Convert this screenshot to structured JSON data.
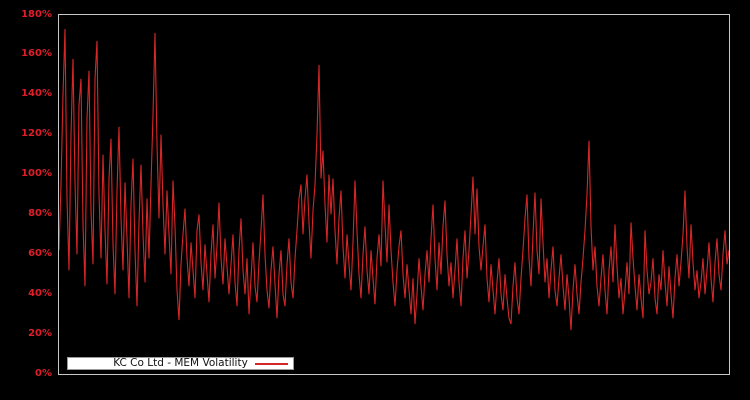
{
  "window": {
    "background_color": "#000000"
  },
  "chart_data": {
    "type": "line",
    "title": "",
    "xlabel": "",
    "ylabel": "",
    "ylim": [
      0,
      180
    ],
    "ytick_interval_pct": 20,
    "yticks": [
      "0%",
      "20%",
      "40%",
      "60%",
      "80%",
      "100%",
      "120%",
      "140%",
      "160%",
      "180%"
    ],
    "xticks": [],
    "grid": false,
    "plot_border_color": "#c8c8c8",
    "tick_label_color": "#de1f2a",
    "legend": {
      "position": "bottom-left",
      "label": "KC Co Ltd - MEM Volatility",
      "background": "#ffffff",
      "text_color": "#111111"
    },
    "series": [
      {
        "name": "KC Co Ltd - MEM Volatility",
        "color": "#d62728",
        "unit": "%",
        "values_pct": [
          62,
          95,
          140,
          173,
          88,
          52,
          120,
          158,
          96,
          60,
          135,
          148,
          75,
          44,
          128,
          152,
          82,
          55,
          148,
          167,
          90,
          58,
          110,
          72,
          45,
          98,
          118,
          65,
          40,
          92,
          124,
          78,
          52,
          96,
          68,
          38,
          85,
          108,
          62,
          34,
          76,
          105,
          70,
          46,
          88,
          58,
          95,
          130,
          171,
          115,
          78,
          120,
          85,
          60,
          92,
          70,
          50,
          97,
          74,
          42,
          27,
          55,
          70,
          83,
          58,
          44,
          66,
          52,
          38,
          72,
          80,
          56,
          42,
          65,
          50,
          36,
          60,
          75,
          48,
          64,
          86,
          58,
          45,
          68,
          54,
          40,
          55,
          70,
          46,
          34,
          62,
          78,
          52,
          40,
          58,
          30,
          48,
          66,
          44,
          36,
          56,
          72,
          90,
          60,
          42,
          33,
          52,
          64,
          45,
          28,
          50,
          62,
          40,
          34,
          55,
          68,
          46,
          38,
          58,
          72,
          88,
          95,
          70,
          88,
          100,
          76,
          58,
          82,
          95,
          120,
          155,
          98,
          112,
          85,
          66,
          100,
          80,
          98,
          72,
          55,
          78,
          92,
          64,
          48,
          70,
          55,
          42,
          66,
          97,
          72,
          50,
          38,
          60,
          74,
          52,
          40,
          62,
          48,
          35,
          58,
          70,
          54,
          97,
          75,
          56,
          85,
          62,
          46,
          34,
          52,
          64,
          72,
          50,
          38,
          55,
          42,
          30,
          48,
          25,
          40,
          58,
          44,
          32,
          50,
          62,
          46,
          68,
          85,
          58,
          42,
          66,
          50,
          74,
          87,
          60,
          44,
          56,
          38,
          52,
          68,
          46,
          34,
          58,
          72,
          48,
          62,
          80,
          99,
          70,
          93,
          64,
          52,
          64,
          75,
          48,
          36,
          55,
          42,
          30,
          46,
          58,
          40,
          32,
          50,
          38,
          28,
          25,
          44,
          56,
          38,
          30,
          48,
          62,
          78,
          90,
          58,
          44,
          70,
          91,
          62,
          50,
          88,
          66,
          46,
          58,
          38,
          52,
          64,
          42,
          34,
          48,
          60,
          44,
          32,
          50,
          38,
          22,
          42,
          55,
          40,
          30,
          46,
          58,
          72,
          90,
          117,
          74,
          52,
          64,
          44,
          34,
          48,
          60,
          42,
          30,
          52,
          64,
          46,
          75,
          54,
          38,
          48,
          30,
          42,
          56,
          40,
          76,
          58,
          44,
          32,
          50,
          38,
          28,
          72,
          52,
          40,
          46,
          58,
          38,
          30,
          50,
          42,
          62,
          46,
          34,
          54,
          40,
          28,
          48,
          60,
          44,
          56,
          70,
          92,
          64,
          48,
          75,
          56,
          42,
          52,
          38,
          46,
          58,
          40,
          52,
          66,
          48,
          36,
          56,
          68,
          50,
          42,
          60,
          72,
          55,
          62
        ]
      }
    ]
  }
}
